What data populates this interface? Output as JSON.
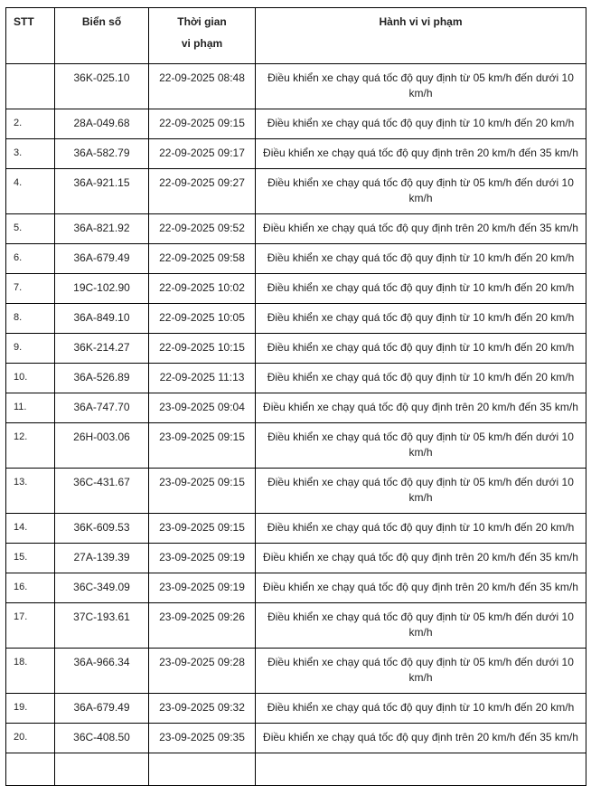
{
  "headers": {
    "stt": "STT",
    "plate": "Biển số",
    "time_line1": "Thời gian",
    "time_line2": "vi phạm",
    "violation": "Hành vi vi phạm"
  },
  "rows": [
    {
      "stt": "",
      "plate": "36K-025.10",
      "time": "22-09-2025 08:48",
      "violation": "Điều khiển xe chạy quá tốc độ quy định từ 05 km/h đến dưới 10 km/h"
    },
    {
      "stt": "2.",
      "plate": "28A-049.68",
      "time": "22-09-2025 09:15",
      "violation": "Điều khiển xe chạy quá tốc độ quy định từ 10 km/h đến 20 km/h"
    },
    {
      "stt": "3.",
      "plate": "36A-582.79",
      "time": "22-09-2025 09:17",
      "violation": "Điều khiển xe chạy quá tốc độ quy định trên 20 km/h đến 35 km/h"
    },
    {
      "stt": "4.",
      "plate": "36A-921.15",
      "time": "22-09-2025 09:27",
      "violation": "Điều khiển xe chạy quá tốc độ quy định từ 05 km/h đến dưới 10 km/h"
    },
    {
      "stt": "5.",
      "plate": "36A-821.92",
      "time": "22-09-2025 09:52",
      "violation": "Điều khiển xe chạy quá tốc độ quy định trên 20 km/h đến 35 km/h"
    },
    {
      "stt": "6.",
      "plate": "36A-679.49",
      "time": "22-09-2025 09:58",
      "violation": "Điều khiển xe chạy quá tốc độ quy định từ 10 km/h đến 20 km/h"
    },
    {
      "stt": "7.",
      "plate": "19C-102.90",
      "time": "22-09-2025 10:02",
      "violation": "Điều khiển xe chạy quá tốc độ quy định từ 10 km/h đến 20 km/h"
    },
    {
      "stt": "8.",
      "plate": "36A-849.10",
      "time": "22-09-2025 10:05",
      "violation": "Điều khiển xe chạy quá tốc độ quy định từ 10 km/h đến 20 km/h"
    },
    {
      "stt": "9.",
      "plate": "36K-214.27",
      "time": "22-09-2025 10:15",
      "violation": "Điều khiển xe chạy quá tốc độ quy định từ 10 km/h đến 20 km/h"
    },
    {
      "stt": "10.",
      "plate": "36A-526.89",
      "time": "22-09-2025 11:13",
      "violation": "Điều khiển xe chạy quá tốc độ quy định từ 10 km/h đến 20 km/h"
    },
    {
      "stt": "11.",
      "plate": "36A-747.70",
      "time": "23-09-2025 09:04",
      "violation": "Điều khiển xe chạy quá tốc độ quy định trên 20 km/h đến 35 km/h"
    },
    {
      "stt": "12.",
      "plate": "26H-003.06",
      "time": "23-09-2025 09:15",
      "violation": "Điều khiển xe chạy quá tốc độ quy định từ 05 km/h đến dưới 10 km/h"
    },
    {
      "stt": "13.",
      "plate": "36C-431.67",
      "time": "23-09-2025 09:15",
      "violation": "Điều khiển xe chạy quá tốc độ quy định từ 05 km/h đến dưới 10 km/h"
    },
    {
      "stt": "14.",
      "plate": "36K-609.53",
      "time": "23-09-2025 09:15",
      "violation": "Điều khiển xe chạy quá tốc độ quy định từ 10 km/h đến 20 km/h"
    },
    {
      "stt": "15.",
      "plate": "27A-139.39",
      "time": "23-09-2025 09:19",
      "violation": "Điều khiển xe chạy quá tốc độ quy định trên 20 km/h đến 35 km/h"
    },
    {
      "stt": "16.",
      "plate": "36C-349.09",
      "time": "23-09-2025 09:19",
      "violation": "Điều khiển xe chạy quá tốc độ quy định trên 20 km/h đến 35 km/h"
    },
    {
      "stt": "17.",
      "plate": "37C-193.61",
      "time": "23-09-2025 09:26",
      "violation": "Điều khiển xe chạy quá tốc độ quy định từ 05 km/h đến dưới 10 km/h"
    },
    {
      "stt": "18.",
      "plate": "36A-966.34",
      "time": "23-09-2025 09:28",
      "violation": "Điều khiển xe chạy quá tốc độ quy định từ 05 km/h đến dưới 10 km/h"
    },
    {
      "stt": "19.",
      "plate": "36A-679.49",
      "time": "23-09-2025 09:32",
      "violation": "Điều khiển xe chạy quá tốc độ quy định từ 10 km/h đến 20 km/h"
    },
    {
      "stt": "20.",
      "plate": "36C-408.50",
      "time": "23-09-2025 09:35",
      "violation": "Điều khiển xe chạy quá tốc độ quy định trên 20 km/h đến 35 km/h"
    }
  ]
}
